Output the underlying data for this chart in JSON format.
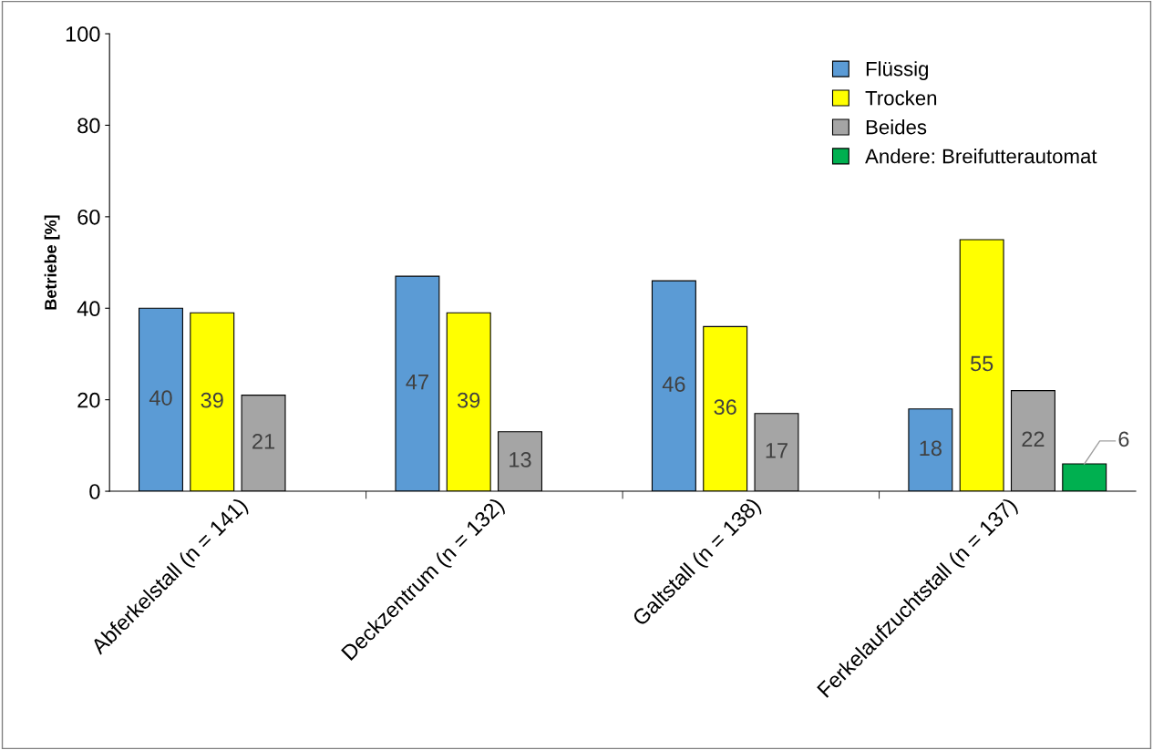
{
  "chart_data": {
    "type": "bar",
    "ylabel": "Betriebe [%]",
    "categories": [
      "Abferkelstall (n = 141)",
      "Deckzentrum (n = 132)",
      "Galtstall (n = 138)",
      "Ferkelaufzuchtstall (n = 137)"
    ],
    "series": [
      {
        "name": "Flüssig",
        "color": "#5b9bd5",
        "values": [
          40,
          47,
          46,
          18
        ]
      },
      {
        "name": "Trocken",
        "color": "#ffff00",
        "values": [
          39,
          39,
          36,
          55
        ]
      },
      {
        "name": "Beides",
        "color": "#a5a5a5",
        "values": [
          21,
          13,
          17,
          22
        ]
      },
      {
        "name": "Andere: Breifutterautomat",
        "color": "#00b050",
        "values": [
          null,
          null,
          null,
          6
        ]
      }
    ],
    "ylim": [
      0,
      100
    ],
    "yticks": [
      0,
      20,
      40,
      60,
      80,
      100
    ],
    "grid": false,
    "legend": "top right",
    "data_labels": true
  }
}
